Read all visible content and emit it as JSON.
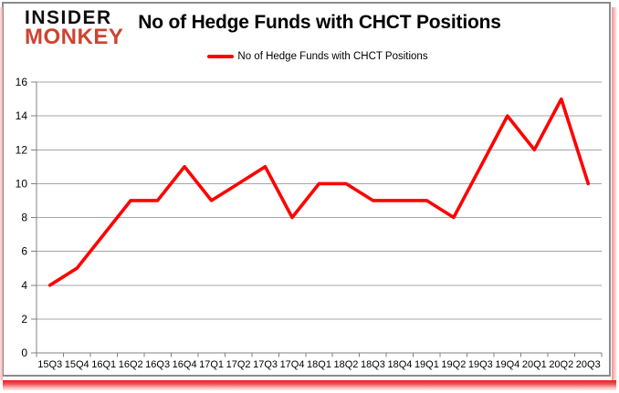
{
  "logo": {
    "line1": "INSIDER",
    "line2": "MONKEY"
  },
  "header": {
    "title": "No of Hedge Funds with CHCT Positions"
  },
  "legend": {
    "label": "No of Hedge Funds with CHCT Positions"
  },
  "colors": {
    "series_red": "#ff0000",
    "logo_black": "#0d0d0d",
    "logo_red": "#ce4332",
    "gridline": "#a6a6a6",
    "axis": "#808080",
    "text": "#000000",
    "card_border": "#8b8b8b",
    "glow_red": "#ec1c24"
  },
  "chart_data": {
    "type": "line",
    "title": "No of Hedge Funds with CHCT Positions",
    "categories": [
      "15Q3",
      "15Q4",
      "16Q1",
      "16Q2",
      "16Q3",
      "16Q4",
      "17Q1",
      "17Q2",
      "17Q3",
      "17Q4",
      "18Q1",
      "18Q2",
      "18Q3",
      "18Q4",
      "19Q1",
      "19Q2",
      "19Q3",
      "19Q4",
      "20Q1",
      "20Q2",
      "20Q3"
    ],
    "series": [
      {
        "name": "No of Hedge Funds with CHCT Positions",
        "color": "#ff0000",
        "values": [
          4,
          5,
          7,
          9,
          9,
          11,
          9,
          10,
          11,
          8,
          10,
          10,
          9,
          9,
          9,
          8,
          11,
          14,
          12,
          15,
          10
        ]
      }
    ],
    "xlabel": "",
    "ylabel": "",
    "ylim": [
      0,
      16
    ],
    "ytick_step": 2,
    "grid": true,
    "legend_position": "top-center"
  }
}
